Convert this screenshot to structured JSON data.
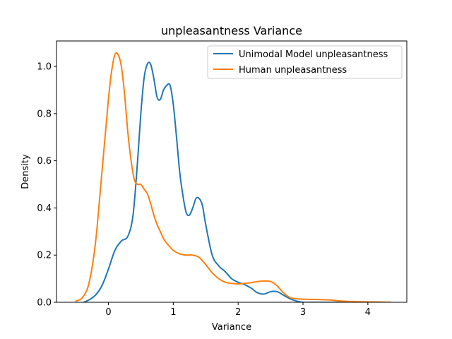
{
  "chart_data": {
    "type": "line",
    "title": "unpleasantness Variance",
    "xlabel": "Variance",
    "ylabel": "Density",
    "xlim": [
      -0.8,
      4.6
    ],
    "ylim": [
      0,
      1.108
    ],
    "xticks": [
      0,
      1,
      2,
      3,
      4
    ],
    "yticks": [
      0.0,
      0.2,
      0.4,
      0.6,
      0.8,
      1.0
    ],
    "xtick_labels": [
      "0",
      "1",
      "2",
      "3",
      "4"
    ],
    "ytick_labels": [
      "0.0",
      "0.2",
      "0.4",
      "0.6",
      "0.8",
      "1.0"
    ],
    "grid": false,
    "legend_position": "top-right",
    "series": [
      {
        "name": "Unimodal Model unpleasantness",
        "color": "#1f77b4",
        "x": [
          -0.38,
          -0.3,
          -0.2,
          -0.1,
          0.0,
          0.1,
          0.2,
          0.3,
          0.38,
          0.45,
          0.5,
          0.55,
          0.6,
          0.65,
          0.7,
          0.75,
          0.8,
          0.85,
          0.9,
          0.95,
          1.0,
          1.05,
          1.1,
          1.15,
          1.2,
          1.25,
          1.3,
          1.35,
          1.4,
          1.45,
          1.5,
          1.6,
          1.7,
          1.8,
          1.9,
          2.0,
          2.1,
          2.2,
          2.3,
          2.4,
          2.5,
          2.6,
          2.7,
          2.8,
          2.9,
          3.0,
          3.2,
          3.4,
          3.6,
          3.8
        ],
        "y": [
          0.0,
          0.01,
          0.03,
          0.07,
          0.14,
          0.22,
          0.26,
          0.28,
          0.37,
          0.6,
          0.8,
          0.95,
          1.01,
          1.01,
          0.95,
          0.87,
          0.86,
          0.9,
          0.92,
          0.92,
          0.84,
          0.7,
          0.55,
          0.45,
          0.38,
          0.37,
          0.4,
          0.44,
          0.44,
          0.41,
          0.33,
          0.2,
          0.155,
          0.13,
          0.1,
          0.085,
          0.075,
          0.06,
          0.04,
          0.035,
          0.045,
          0.045,
          0.03,
          0.015,
          0.005,
          0.0,
          0.0,
          0.0,
          0.0,
          0.0
        ]
      },
      {
        "name": "Human unpleasantness",
        "color": "#ff7f0e",
        "x": [
          -0.5,
          -0.4,
          -0.3,
          -0.2,
          -0.1,
          0.0,
          0.05,
          0.1,
          0.15,
          0.2,
          0.25,
          0.3,
          0.35,
          0.4,
          0.45,
          0.5,
          0.55,
          0.6,
          0.65,
          0.7,
          0.75,
          0.8,
          0.85,
          0.9,
          0.95,
          1.0,
          1.1,
          1.2,
          1.3,
          1.4,
          1.5,
          1.6,
          1.7,
          1.8,
          1.9,
          2.0,
          2.1,
          2.2,
          2.3,
          2.4,
          2.5,
          2.6,
          2.7,
          2.8,
          2.9,
          3.0,
          3.2,
          3.4,
          3.6,
          3.8,
          4.0,
          4.2,
          4.35
        ],
        "y": [
          0.005,
          0.02,
          0.08,
          0.25,
          0.55,
          0.86,
          0.98,
          1.05,
          1.05,
          1.0,
          0.88,
          0.72,
          0.6,
          0.52,
          0.5,
          0.5,
          0.48,
          0.46,
          0.42,
          0.37,
          0.33,
          0.3,
          0.27,
          0.25,
          0.235,
          0.22,
          0.205,
          0.2,
          0.2,
          0.19,
          0.16,
          0.125,
          0.1,
          0.085,
          0.08,
          0.078,
          0.08,
          0.083,
          0.088,
          0.09,
          0.088,
          0.07,
          0.04,
          0.02,
          0.015,
          0.013,
          0.012,
          0.01,
          0.005,
          0.003,
          0.002,
          0.001,
          0.0
        ]
      }
    ]
  }
}
